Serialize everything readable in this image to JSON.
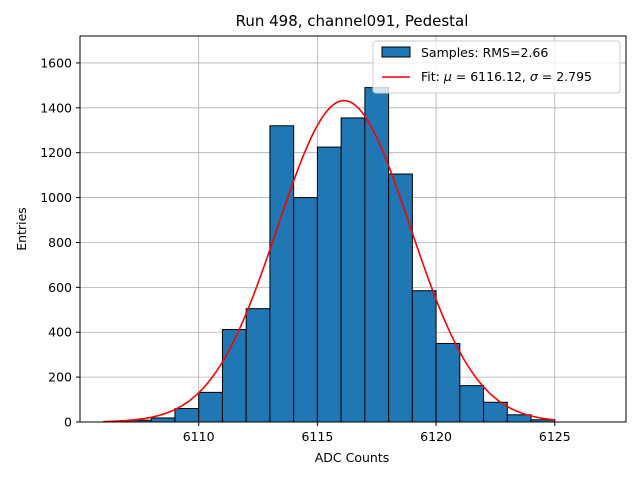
{
  "chart_data": {
    "type": "bar",
    "title": "Run 498, channel091, Pedestal",
    "xlabel": "ADC Counts",
    "ylabel": "Entries",
    "xlim": [
      6105,
      6128
    ],
    "ylim": [
      0,
      1720
    ],
    "xticks": [
      6110,
      6115,
      6120,
      6125
    ],
    "yticks": [
      0,
      200,
      400,
      600,
      800,
      1000,
      1200,
      1400,
      1600
    ],
    "grid": true,
    "legend_position": "top-right",
    "bar_color": "#1f77b4",
    "fit_color": "#ff0000",
    "bins": [
      {
        "x0": 6106,
        "x1": 6107,
        "value": 2
      },
      {
        "x0": 6107,
        "x1": 6108,
        "value": 8
      },
      {
        "x0": 6108,
        "x1": 6109,
        "value": 18
      },
      {
        "x0": 6109,
        "x1": 6110,
        "value": 60
      },
      {
        "x0": 6110,
        "x1": 6111,
        "value": 132
      },
      {
        "x0": 6111,
        "x1": 6112,
        "value": 412
      },
      {
        "x0": 6112,
        "x1": 6113,
        "value": 505
      },
      {
        "x0": 6113,
        "x1": 6114,
        "value": 1320
      },
      {
        "x0": 6114,
        "x1": 6115,
        "value": 1000
      },
      {
        "x0": 6115,
        "x1": 6116,
        "value": 1225
      },
      {
        "x0": 6116,
        "x1": 6117,
        "value": 1355
      },
      {
        "x0": 6117,
        "x1": 6118,
        "value": 1490
      },
      {
        "x0": 6118,
        "x1": 6119,
        "value": 1105
      },
      {
        "x0": 6119,
        "x1": 6120,
        "value": 585
      },
      {
        "x0": 6120,
        "x1": 6121,
        "value": 350
      },
      {
        "x0": 6121,
        "x1": 6122,
        "value": 162
      },
      {
        "x0": 6122,
        "x1": 6123,
        "value": 88
      },
      {
        "x0": 6123,
        "x1": 6124,
        "value": 32
      },
      {
        "x0": 6124,
        "x1": 6125,
        "value": 10
      }
    ],
    "fit": {
      "mu": 6116.12,
      "sigma": 2.795,
      "amplitude": 1432,
      "x_range": [
        6106,
        6125
      ]
    },
    "legend": {
      "samples_label": "Samples: RMS=2.66",
      "fit_prefix": "Fit: ",
      "mu_symbol": "μ",
      "mu_text": " = 6116.12, ",
      "sigma_symbol": "σ",
      "sigma_text": " = 2.795"
    }
  }
}
